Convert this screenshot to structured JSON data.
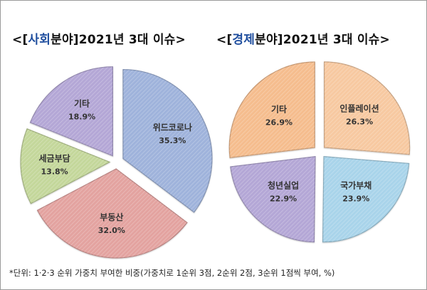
{
  "titles": {
    "social": {
      "prefix": "<[",
      "highlight": "사회",
      "rest": "분야]2021년 3대 이슈>"
    },
    "economic": {
      "prefix": "<[",
      "highlight": "경제",
      "rest": "분야]2021년 3대 이슈>"
    }
  },
  "footnote": "*단위: 1·2·3 순위 가중치 부여한 비중(가중치로 1순위 3점, 2순위 2점, 3순위 1점씩 부여, %)",
  "chart_data": [
    {
      "type": "pie",
      "title": "<[사회분야]2021년 3대 이슈>",
      "unit": "%",
      "slices": [
        {
          "label": "위드코로나",
          "value": 35.3,
          "display": "35.3%",
          "color": "#9fb3db"
        },
        {
          "label": "부동산",
          "value": 32.0,
          "display": "32.0%",
          "color": "#e3a3a0"
        },
        {
          "label": "세금부담",
          "value": 13.8,
          "display": "13.8%",
          "color": "#c4d79b"
        },
        {
          "label": "기타",
          "value": 18.9,
          "display": "18.9%",
          "color": "#b4a7d6"
        }
      ]
    },
    {
      "type": "pie",
      "title": "<[경제분야]2021년 3대 이슈>",
      "unit": "%",
      "slices": [
        {
          "label": "인플레이션",
          "value": 26.3,
          "display": "26.3%",
          "color": "#f7c9a1"
        },
        {
          "label": "국가부채",
          "value": 23.9,
          "display": "23.9%",
          "color": "#a9d4ea"
        },
        {
          "label": "청년실업",
          "value": 22.9,
          "display": "22.9%",
          "color": "#b4a7d6"
        },
        {
          "label": "기타",
          "value": 26.9,
          "display": "26.9%",
          "color": "#f5bd8e"
        }
      ]
    }
  ]
}
